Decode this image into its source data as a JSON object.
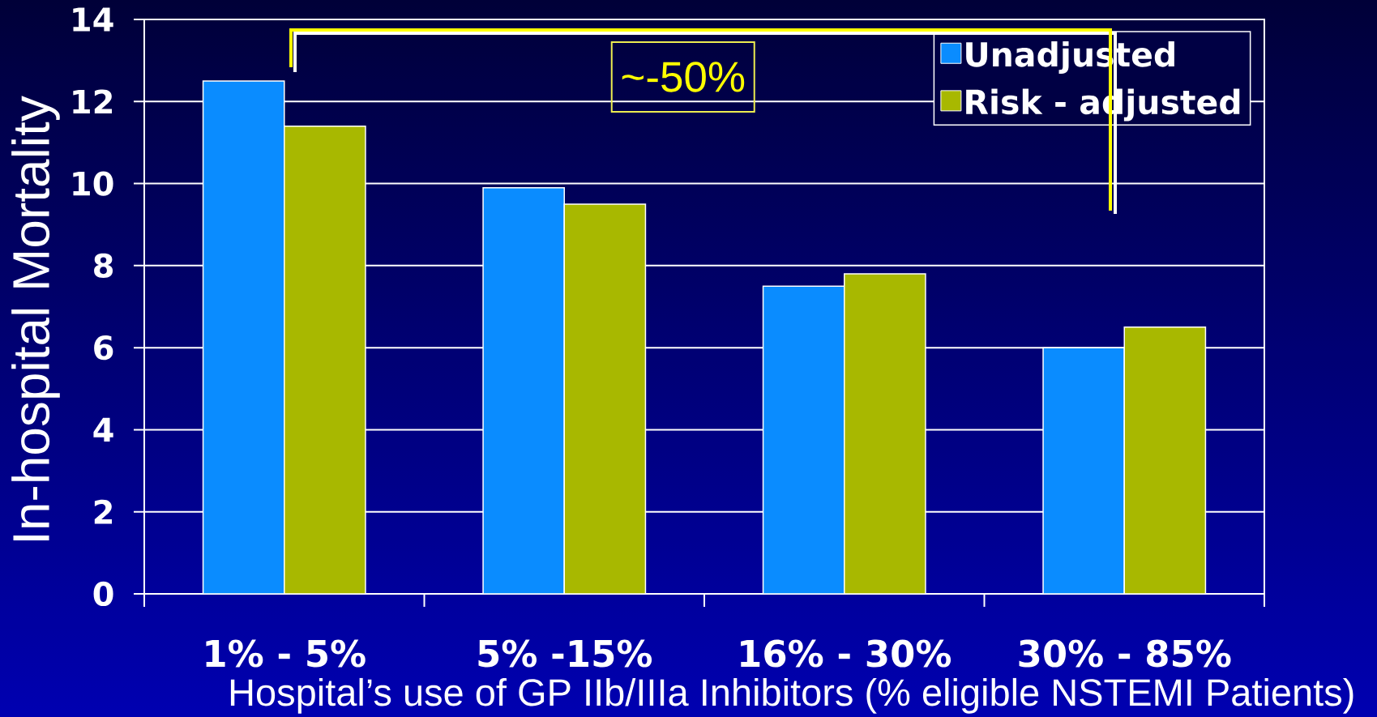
{
  "chart_data": {
    "type": "bar",
    "categories": [
      "1% - 5%",
      "5% -15%",
      "16% - 30%",
      "30% - 85%"
    ],
    "series": [
      {
        "name": "Unadjusted",
        "color": "#0a8cff",
        "values": [
          12.5,
          9.9,
          7.5,
          6.0
        ]
      },
      {
        "name": "Risk - adjusted",
        "color": "#a8b800",
        "values": [
          11.4,
          9.5,
          7.8,
          6.5
        ]
      }
    ],
    "ylim": [
      0,
      14
    ],
    "yticks": [
      0,
      2,
      4,
      6,
      8,
      10,
      12,
      14
    ],
    "ylabel": "In-hospital Mortality",
    "xlabel": "Hospital’s use of GP IIb/IIIa Inhibitors (% eligible NSTEMI Patients)",
    "annotations": [
      "~-50%"
    ],
    "grid": "y",
    "legend": "top right"
  }
}
